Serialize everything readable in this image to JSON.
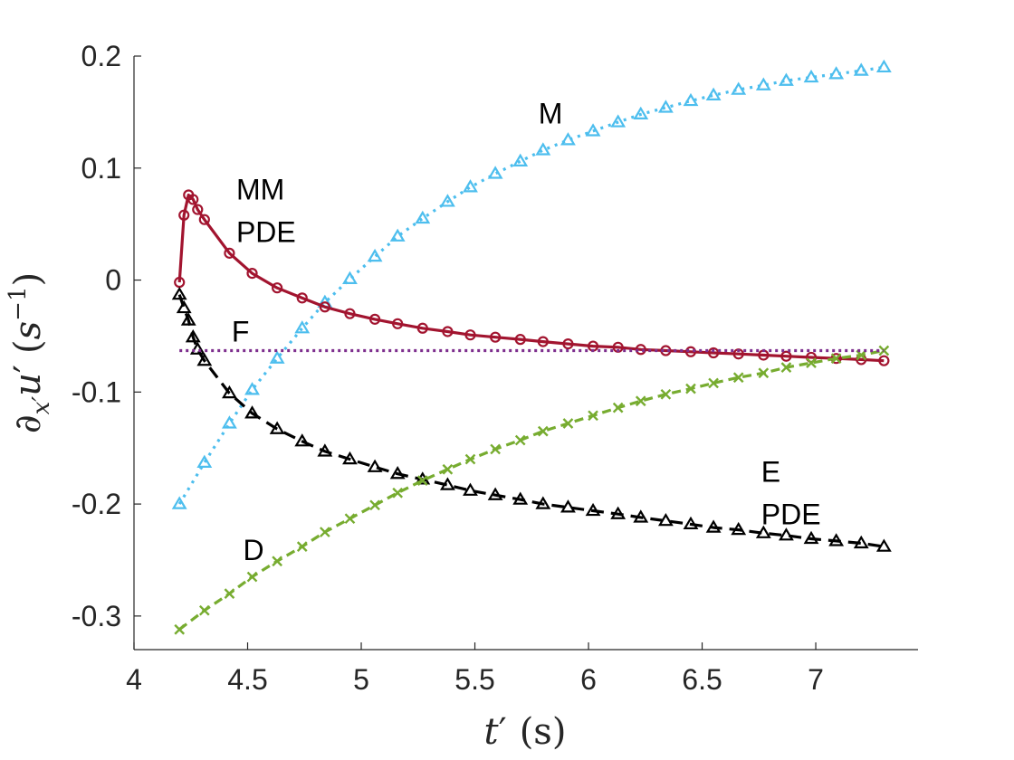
{
  "chart_data": {
    "type": "line",
    "xlabel": "t′ (s)",
    "ylabel": "∂x′u′ (s−1)",
    "xlim": [
      4,
      7.45
    ],
    "ylim": [
      -0.33,
      0.2
    ],
    "xticks": [
      4,
      4.5,
      5,
      5.5,
      6,
      6.5,
      7
    ],
    "xtick_labels": [
      "4",
      "4.5",
      "5",
      "5.5",
      "6",
      "6.5",
      "7"
    ],
    "yticks": [
      0.2,
      0.1,
      0,
      -0.1,
      -0.2,
      -0.3
    ],
    "ytick_labels": [
      "0.2",
      "0.1",
      "0",
      "-0.1",
      "-0.2",
      "-0.3"
    ],
    "annotations": [
      {
        "text": "M",
        "x": 5.78,
        "y": 0.14
      },
      {
        "text": "MM",
        "x": 4.45,
        "y": 0.072
      },
      {
        "text": "PDE",
        "x": 4.45,
        "y": 0.034
      },
      {
        "text": "F",
        "x": 4.43,
        "y": -0.055
      },
      {
        "text": "E",
        "x": 6.76,
        "y": -0.18
      },
      {
        "text": "PDE",
        "x": 6.76,
        "y": -0.218
      },
      {
        "text": "D",
        "x": 4.48,
        "y": -0.25
      }
    ],
    "series": [
      {
        "name": "M",
        "color": "#4DBEEE",
        "dash": "3,6",
        "marker": "triangle",
        "x": [
          4.2,
          4.31,
          4.42,
          4.52,
          4.63,
          4.74,
          4.84,
          4.95,
          5.06,
          5.16,
          5.27,
          5.38,
          5.48,
          5.59,
          5.7,
          5.8,
          5.91,
          6.02,
          6.13,
          6.23,
          6.34,
          6.45,
          6.55,
          6.66,
          6.77,
          6.87,
          6.98,
          7.09,
          7.2,
          7.3
        ],
        "y": [
          -0.2,
          -0.163,
          -0.128,
          -0.098,
          -0.07,
          -0.043,
          -0.02,
          0.001,
          0.021,
          0.039,
          0.055,
          0.07,
          0.083,
          0.095,
          0.106,
          0.116,
          0.125,
          0.133,
          0.141,
          0.148,
          0.154,
          0.16,
          0.165,
          0.17,
          0.174,
          0.178,
          0.181,
          0.184,
          0.187,
          0.19
        ]
      },
      {
        "name": "MM PDE",
        "color": "#A2142F",
        "dash": "",
        "marker": "circle",
        "x": [
          4.2,
          4.22,
          4.24,
          4.26,
          4.28,
          4.31,
          4.42,
          4.52,
          4.63,
          4.74,
          4.84,
          4.95,
          5.06,
          5.16,
          5.27,
          5.38,
          5.48,
          5.59,
          5.7,
          5.8,
          5.91,
          6.02,
          6.13,
          6.23,
          6.34,
          6.45,
          6.55,
          6.66,
          6.77,
          6.87,
          6.98,
          7.09,
          7.2,
          7.3
        ],
        "y": [
          -0.002,
          0.058,
          0.076,
          0.072,
          0.063,
          0.054,
          0.024,
          0.006,
          -0.007,
          -0.016,
          -0.024,
          -0.03,
          -0.035,
          -0.039,
          -0.043,
          -0.046,
          -0.049,
          -0.051,
          -0.053,
          -0.055,
          -0.057,
          -0.059,
          -0.06,
          -0.062,
          -0.063,
          -0.064,
          -0.065,
          -0.066,
          -0.067,
          -0.068,
          -0.069,
          -0.07,
          -0.071,
          -0.072
        ]
      },
      {
        "name": "E PDE",
        "color": "#000000",
        "dash": "14,8",
        "marker": "triangle",
        "x": [
          4.2,
          4.22,
          4.24,
          4.26,
          4.28,
          4.31,
          4.42,
          4.52,
          4.63,
          4.74,
          4.84,
          4.95,
          5.06,
          5.16,
          5.27,
          5.38,
          5.48,
          5.59,
          5.7,
          5.8,
          5.91,
          6.02,
          6.13,
          6.23,
          6.34,
          6.45,
          6.55,
          6.66,
          6.77,
          6.87,
          6.98,
          7.09,
          7.2,
          7.3
        ],
        "y": [
          -0.013,
          -0.025,
          -0.036,
          -0.051,
          -0.062,
          -0.072,
          -0.101,
          -0.119,
          -0.133,
          -0.144,
          -0.153,
          -0.16,
          -0.167,
          -0.173,
          -0.178,
          -0.183,
          -0.188,
          -0.192,
          -0.196,
          -0.2,
          -0.203,
          -0.206,
          -0.209,
          -0.212,
          -0.215,
          -0.218,
          -0.221,
          -0.223,
          -0.226,
          -0.228,
          -0.231,
          -0.233,
          -0.235,
          -0.238
        ]
      },
      {
        "name": "D",
        "color": "#77AC30",
        "dash": "10,6",
        "marker": "x",
        "x": [
          4.2,
          4.31,
          4.42,
          4.52,
          4.63,
          4.74,
          4.84,
          4.95,
          5.06,
          5.16,
          5.27,
          5.38,
          5.48,
          5.59,
          5.7,
          5.8,
          5.91,
          6.02,
          6.13,
          6.23,
          6.34,
          6.45,
          6.55,
          6.66,
          6.77,
          6.87,
          6.98,
          7.09,
          7.2,
          7.3
        ],
        "y": [
          -0.312,
          -0.295,
          -0.28,
          -0.265,
          -0.251,
          -0.238,
          -0.225,
          -0.213,
          -0.201,
          -0.19,
          -0.179,
          -0.169,
          -0.16,
          -0.151,
          -0.143,
          -0.135,
          -0.128,
          -0.121,
          -0.114,
          -0.108,
          -0.102,
          -0.097,
          -0.092,
          -0.087,
          -0.083,
          -0.078,
          -0.074,
          -0.07,
          -0.067,
          -0.063
        ]
      },
      {
        "name": "F",
        "color": "#7E2F8E",
        "dash": "3,4",
        "marker": "none",
        "x": [
          4.2,
          7.3
        ],
        "y": [
          -0.063,
          -0.063
        ]
      }
    ]
  }
}
